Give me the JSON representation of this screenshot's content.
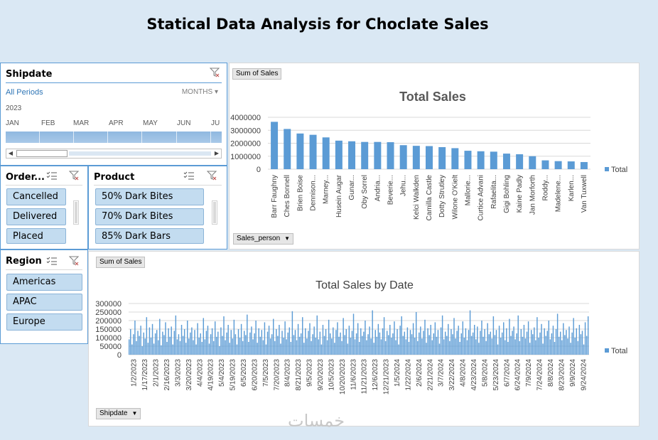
{
  "title": "Statical Data Analysis for Choclate Sales",
  "timeline": {
    "header": "Shipdate",
    "period_label": "All Periods",
    "level_label": "MONTHS",
    "year": "2023",
    "months": [
      "JAN",
      "FEB",
      "MAR",
      "APR",
      "MAY",
      "JUN",
      "JU"
    ]
  },
  "order_slicer": {
    "header": "Order...",
    "items": [
      "Cancelled",
      "Delivered",
      "Placed"
    ]
  },
  "product_slicer": {
    "header": "Product",
    "items": [
      "50% Dark Bites",
      "70% Dark Bites",
      "85% Dark Bars"
    ]
  },
  "region_slicer": {
    "header": "Region",
    "items": [
      "Americas",
      "APAC",
      "Europe"
    ]
  },
  "chart_data": [
    {
      "type": "bar",
      "title": "Total Sales",
      "value_button": "Sum of Sales",
      "axis_button": "Sales_person",
      "legend": "Total",
      "legend_position": "right",
      "ylim": [
        0,
        4000000
      ],
      "yticks": [
        "0",
        "1000000",
        "2000000",
        "3000000",
        "4000000"
      ],
      "categories": [
        "Barr Faughny",
        "Ches Bonnell",
        "Brien Boise",
        "Dennison...",
        "Marney...",
        "Husein Augar",
        "Gunar...",
        "Oby Sorrel",
        "Andria...",
        "Beverie...",
        "Jehu...",
        "Kelci Walkden",
        "Camilla Castle",
        "Dotty Strutley",
        "Wilone O'Kielt",
        "Mallorie...",
        "Curtice Advani",
        "Rafaelita...",
        "Gigi Bohling",
        "Kaine Padly",
        "Jan Morforth",
        "Roddy...",
        "Madelene...",
        "Karlen...",
        "Van Tuxwell"
      ],
      "values": [
        3650000,
        3100000,
        2750000,
        2650000,
        2450000,
        2200000,
        2150000,
        2100000,
        2100000,
        2080000,
        1850000,
        1800000,
        1780000,
        1700000,
        1620000,
        1420000,
        1380000,
        1350000,
        1200000,
        1150000,
        1000000,
        680000,
        620000,
        600000,
        550000
      ]
    },
    {
      "type": "bar",
      "title": "Total Sales by Date",
      "value_button": "Sum of Sales",
      "axis_button": "Shipdate",
      "legend": "Total",
      "legend_position": "right",
      "ylim": [
        0,
        300000
      ],
      "yticks": [
        "0",
        "50000",
        "100000",
        "150000",
        "200000",
        "250000",
        "300000"
      ],
      "xtick_labels": [
        "1/2/2023",
        "1/17/2023",
        "2/1/2023",
        "2/16/2023",
        "3/3/2023",
        "3/20/2023",
        "4/4/2023",
        "4/19/2023",
        "5/4/2023",
        "5/19/2023",
        "6/5/2023",
        "6/20/2023",
        "7/5/2023",
        "7/20/2023",
        "8/4/2023",
        "8/21/2023",
        "9/5/2023",
        "9/20/2023",
        "10/5/2023",
        "10/20/2023",
        "11/6/2023",
        "11/21/2023",
        "12/6/2023",
        "12/21/2023",
        "1/5/2024",
        "1/22/2024",
        "2/6/2024",
        "2/21/2024",
        "3/7/2024",
        "3/22/2024",
        "4/8/2024",
        "4/23/2024",
        "5/8/2024",
        "5/23/2024",
        "6/7/2024",
        "6/24/2024",
        "7/9/2024",
        "7/24/2024",
        "8/8/2024",
        "8/23/2024",
        "9/9/2024",
        "9/24/2024"
      ],
      "values": [
        90000,
        150000,
        60000,
        120000,
        200000,
        80000,
        140000,
        110000,
        170000,
        50000,
        130000,
        95000,
        220000,
        70000,
        160000,
        100000,
        180000,
        65000,
        125000,
        145000,
        85000,
        210000,
        55000,
        135000,
        115000,
        190000,
        75000,
        155000,
        105000,
        165000,
        60000,
        140000,
        230000,
        90000,
        120000,
        80000,
        175000,
        110000,
        150000,
        70000,
        200000,
        95000,
        130000,
        160000,
        85000,
        145000,
        60000,
        185000,
        100000,
        125000,
        75000,
        215000,
        90000,
        140000,
        170000,
        65000,
        120000,
        155000,
        80000,
        195000,
        105000,
        135000,
        50000,
        160000,
        110000,
        225000,
        85000,
        130000,
        175000,
        70000,
        145000,
        95000,
        205000,
        120000,
        60000,
        150000,
        100000,
        180000,
        80000,
        140000,
        115000,
        235000,
        75000,
        130000,
        165000,
        90000,
        125000,
        200000,
        70000,
        155000,
        105000,
        145000,
        85000,
        190000,
        60000,
        135000,
        170000,
        95000,
        120000,
        210000,
        80000,
        150000,
        110000,
        175000,
        65000,
        140000,
        100000,
        195000,
        90000,
        130000,
        160000,
        75000,
        255000,
        115000,
        145000,
        85000,
        180000,
        105000,
        125000,
        220000,
        70000,
        155000,
        95000,
        140000,
        185000,
        80000,
        120000,
        165000,
        100000,
        230000,
        90000,
        135000,
        60000,
        175000,
        110000,
        150000,
        85000,
        205000,
        125000,
        95000,
        160000,
        70000,
        145000,
        190000,
        105000,
        130000,
        80000,
        215000,
        115000,
        150000,
        65000,
        170000,
        100000,
        140000,
        240000,
        90000,
        125000,
        185000,
        75000,
        155000,
        110000,
        135000,
        200000,
        85000,
        120000,
        165000,
        95000,
        260000,
        70000,
        145000,
        105000,
        180000,
        130000,
        90000,
        155000,
        220000,
        80000,
        140000,
        115000,
        175000,
        100000,
        125000,
        195000,
        85000,
        150000,
        60000,
        170000,
        225000,
        110000,
        135000,
        90000,
        160000,
        75000,
        145000,
        120000,
        185000,
        100000,
        250000,
        80000,
        130000,
        165000,
        95000,
        140000,
        205000,
        70000,
        155000,
        115000,
        175000,
        85000,
        125000,
        190000,
        105000,
        145000,
        65000,
        160000,
        230000,
        90000,
        135000,
        110000,
        180000,
        80000,
        150000,
        120000,
        215000,
        95000,
        140000,
        170000,
        75000,
        125000,
        195000,
        100000,
        155000,
        85000,
        145000,
        260000,
        110000,
        130000,
        175000,
        90000,
        165000,
        70000,
        140000,
        200000,
        105000,
        150000,
        80000,
        185000,
        120000,
        135000,
        95000,
        225000,
        115000,
        145000,
        60000,
        170000,
        100000,
        130000,
        190000,
        85000,
        155000,
        75000,
        210000,
        110000,
        140000,
        165000,
        90000,
        125000,
        230000,
        80000,
        150000,
        105000,
        175000,
        95000,
        135000,
        195000,
        70000,
        145000,
        120000,
        160000,
        85000,
        220000,
        100000,
        130000,
        180000,
        65000,
        155000,
        110000,
        140000,
        200000,
        90000,
        125000,
        170000,
        75000,
        150000,
        240000,
        105000,
        135000,
        85000,
        185000,
        115000,
        145000,
        95000,
        165000,
        70000,
        130000,
        215000,
        100000,
        155000,
        80000,
        175000,
        120000,
        140000,
        60000,
        190000,
        110000,
        225000
      ]
    }
  ],
  "watermark": "خمسات"
}
